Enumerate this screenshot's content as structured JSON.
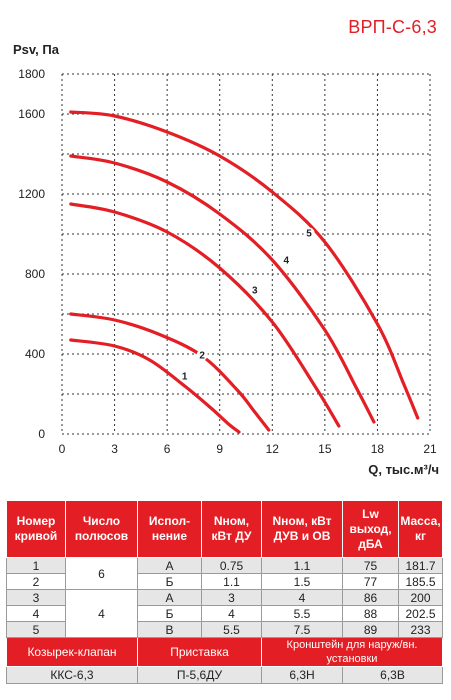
{
  "chart_data": {
    "type": "line",
    "title": "ВРП-С-6,3",
    "ylabel": "Psv, Па",
    "xlabel": "Q, тыс.м³/ч",
    "xlim": [
      0,
      21
    ],
    "ylim": [
      0,
      1800
    ],
    "xticks": [
      "0",
      "3",
      "6",
      "9",
      "12",
      "15",
      "18",
      "21"
    ],
    "yticks": [
      "0",
      "400",
      "800",
      "1200",
      "1600",
      "1800"
    ],
    "grid": "dashed",
    "series": [
      {
        "name": "1",
        "x": [
          0.5,
          3,
          5,
          7,
          8.5,
          9.5,
          10.1
        ],
        "y": [
          470,
          440,
          370,
          240,
          130,
          50,
          10
        ],
        "label_at": [
          7.0,
          290
        ]
      },
      {
        "name": "2",
        "x": [
          0.5,
          3,
          5.5,
          8,
          10,
          11,
          11.8
        ],
        "y": [
          600,
          570,
          500,
          390,
          220,
          110,
          20
        ],
        "label_at": [
          8.0,
          395
        ]
      },
      {
        "name": "3",
        "x": [
          0.5,
          3,
          6,
          9,
          12,
          14.5,
          15.8
        ],
        "y": [
          1150,
          1110,
          1010,
          830,
          560,
          230,
          40
        ],
        "label_at": [
          11.0,
          720
        ]
      },
      {
        "name": "4",
        "x": [
          0.5,
          3,
          6,
          9,
          12,
          15,
          16.8,
          17.8
        ],
        "y": [
          1390,
          1355,
          1260,
          1100,
          870,
          520,
          230,
          60
        ],
        "label_at": [
          12.8,
          870
        ]
      },
      {
        "name": "5",
        "x": [
          0.5,
          3,
          6,
          9,
          12,
          15,
          18,
          19.5,
          20.3
        ],
        "y": [
          1610,
          1590,
          1510,
          1390,
          1210,
          960,
          550,
          250,
          80
        ],
        "label_at": [
          14.1,
          1005
        ]
      }
    ]
  },
  "table": {
    "headers": [
      "Номер кривой",
      "Число полюсов",
      "Испол-нение",
      "Nном, кВт ДУ",
      "Nном, кВт ДУВ и ОВ",
      "Lw выход, дБА",
      "Масса, кг"
    ],
    "rows": [
      {
        "curve": "1",
        "exec": "А",
        "n_du": "0.75",
        "n_duv": "1.1",
        "lw": "75",
        "mass": "181.7"
      },
      {
        "curve": "2",
        "exec": "Б",
        "n_du": "1.1",
        "n_duv": "1.5",
        "lw": "77",
        "mass": "185.5"
      },
      {
        "curve": "3",
        "exec": "А",
        "n_du": "3",
        "n_duv": "4",
        "lw": "86",
        "mass": "200"
      },
      {
        "curve": "4",
        "exec": "Б",
        "n_du": "4",
        "n_duv": "5.5",
        "lw": "88",
        "mass": "202.5"
      },
      {
        "curve": "5",
        "exec": "В",
        "n_du": "5.5",
        "n_duv": "7.5",
        "lw": "89",
        "mass": "233"
      }
    ],
    "poles": [
      "6",
      "4"
    ],
    "accessories": {
      "labels": [
        "Козырек-клапан",
        "Приставка",
        "Кронштейн для наруж/вн. установки"
      ],
      "values": [
        "ККС-6,3",
        "П-5,6ДУ",
        "6,3Н",
        "6,3В"
      ]
    }
  },
  "colors": {
    "accent": "#e31e24",
    "grid": "#333333",
    "row_shade": "#e6e6e6"
  }
}
